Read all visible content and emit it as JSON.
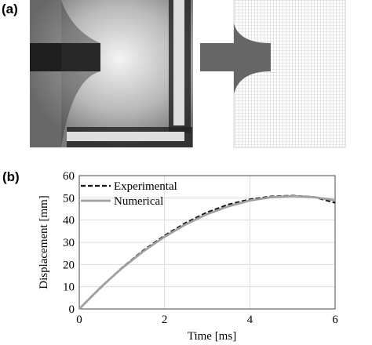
{
  "panel_labels": [
    "(a)",
    "(b)"
  ],
  "chart_data": {
    "type": "line",
    "xlabel": "Time [ms]",
    "ylabel": "Displacement [mm]",
    "x": [
      0,
      0.5,
      1,
      1.5,
      2,
      2.5,
      3,
      3.5,
      4,
      4.5,
      5,
      5.5,
      6
    ],
    "series": [
      {
        "name": "Experimental",
        "color": "#111111",
        "dash": true,
        "values": [
          0,
          9.5,
          18.5,
          26.3,
          33,
          38.8,
          43.5,
          47,
          49.3,
          50.6,
          51,
          50.4,
          47.8
        ]
      },
      {
        "name": "Numerical",
        "color": "#a0a0a0",
        "dash": false,
        "values": [
          0,
          9.7,
          18.3,
          25.9,
          32.5,
          38.1,
          42.7,
          46.2,
          48.8,
          50.3,
          50.8,
          50.3,
          49
        ]
      }
    ],
    "xlim": [
      0,
      6
    ],
    "xticks": [
      0,
      2,
      4,
      6
    ],
    "ylim": [
      0,
      60
    ],
    "yticks": [
      0,
      10,
      20,
      30,
      40,
      50,
      60
    ],
    "grid": true,
    "legend": "upper-left"
  }
}
